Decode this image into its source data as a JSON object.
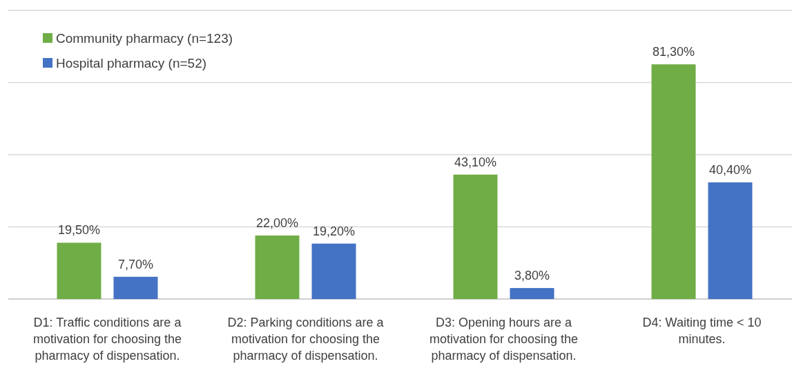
{
  "chart_data": {
    "type": "bar",
    "categories": [
      "D1: Traffic conditions are a motivation for choosing the pharmacy of dispensation.",
      "D2: Parking conditions are a motivation for choosing the pharmacy of dispensation.",
      "D3: Opening hours are a motivation for choosing the pharmacy of dispensation.",
      "D4: Waiting time < 10 minutes."
    ],
    "series": [
      {
        "name": "Community pharmacy (n=123)",
        "color": "#70ad47",
        "values": [
          19.5,
          22.0,
          43.1,
          81.3
        ],
        "value_labels": [
          "19,50%",
          "22,00%",
          "43,10%",
          "81,30%"
        ]
      },
      {
        "name": "Hospital pharmacy (n=52)",
        "color": "#4472c4",
        "values": [
          7.7,
          19.2,
          3.8,
          40.4
        ],
        "value_labels": [
          "7,70%",
          "19,20%",
          "3,80%",
          "40,40%"
        ]
      }
    ],
    "ylim": [
      0,
      100
    ],
    "yticks": [
      {
        "value": 0,
        "label": null
      },
      {
        "value": 25,
        "label": null
      },
      {
        "value": 50,
        "label": null
      },
      {
        "value": 75,
        "label": null
      },
      {
        "value": 100,
        "label": null
      }
    ],
    "grid": "y",
    "legend": "top left",
    "tick_labels": "x"
  }
}
